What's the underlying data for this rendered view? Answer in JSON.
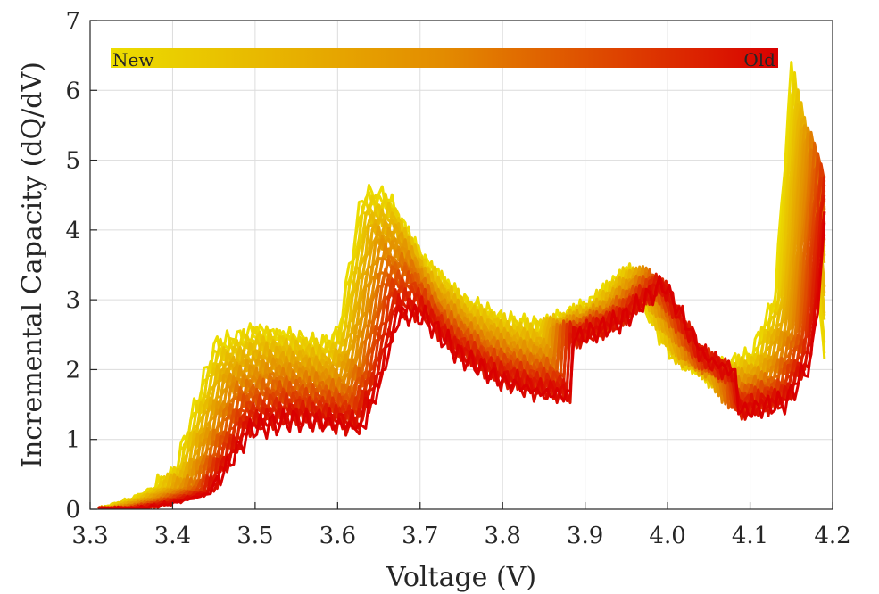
{
  "chart_data": {
    "type": "line",
    "xlabel": "Voltage (V)",
    "ylabel": "Incremental Capacity (dQ/dV)",
    "xlim": [
      3.3,
      4.2
    ],
    "ylim": [
      0,
      7
    ],
    "xticks": [
      "3.3",
      "3.4",
      "3.5",
      "3.6",
      "3.7",
      "3.8",
      "3.9",
      "4.0",
      "4.1",
      "4.2"
    ],
    "yticks": [
      "0",
      "1",
      "2",
      "3",
      "4",
      "5",
      "6",
      "7"
    ],
    "grid": true,
    "colorbar": {
      "orientation": "horizontal",
      "placement": "top",
      "label_start": "New",
      "label_end": "Old",
      "color_start": "#ecdd00",
      "color_mid": "#e38b00",
      "color_end": "#d90000"
    },
    "series_count": 34,
    "series_shape": {
      "description_points": [
        [
          3.31,
          0.0
        ],
        [
          3.35,
          0.15
        ],
        [
          3.4,
          0.45
        ],
        [
          3.45,
          2.3
        ],
        [
          3.5,
          2.55
        ],
        [
          3.55,
          2.45
        ],
        [
          3.58,
          2.35
        ],
        [
          3.6,
          2.5
        ],
        [
          3.63,
          4.5
        ],
        [
          3.66,
          4.45
        ],
        [
          3.7,
          3.6
        ],
        [
          3.75,
          3.0
        ],
        [
          3.8,
          2.7
        ],
        [
          3.85,
          2.6
        ],
        [
          3.9,
          2.85
        ],
        [
          3.95,
          3.4
        ],
        [
          4.0,
          2.3
        ],
        [
          4.05,
          1.95
        ],
        [
          4.1,
          2.15
        ],
        [
          4.13,
          3.0
        ],
        [
          4.15,
          6.3
        ],
        [
          4.17,
          4.5
        ],
        [
          4.19,
          2.2
        ]
      ],
      "newest": {
        "voltage_shift": 0.0,
        "peak_scale": [
          1.0,
          1.0,
          1.0,
          1.0
        ]
      },
      "oldest": {
        "voltage_shift": 0.045,
        "peak_scale": [
          0.5,
          0.62,
          0.95,
          0.72
        ]
      }
    }
  }
}
